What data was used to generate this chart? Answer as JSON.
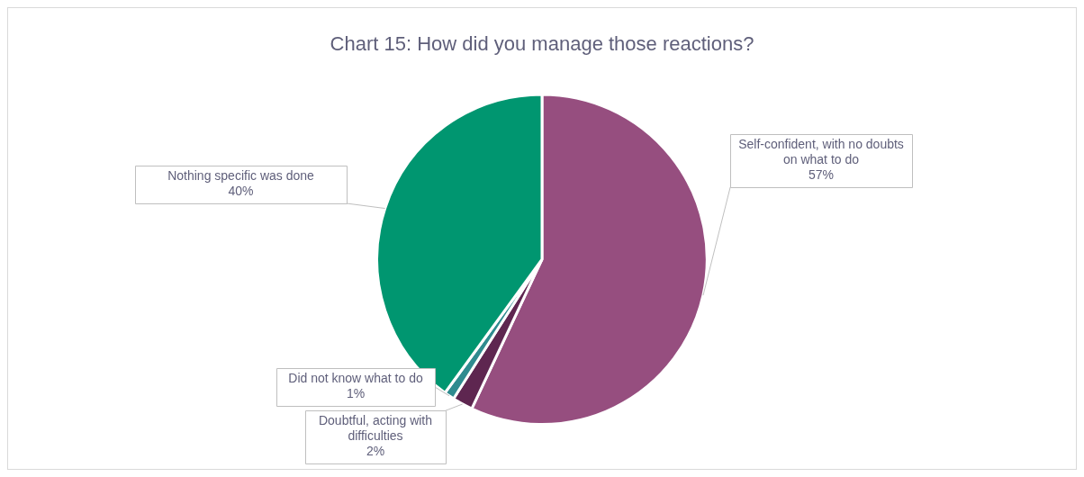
{
  "chart_data": {
    "type": "pie",
    "title": "Chart 15: How did you manage those reactions?",
    "categories": [
      "Self-confident, with no doubts on what to do",
      "Doubtful, acting with difficulties",
      "Did not know what to do",
      "Nothing specific was done"
    ],
    "values": [
      57,
      2,
      1,
      40
    ],
    "value_labels": [
      "57%",
      "2%",
      "1%",
      "40%"
    ],
    "colors": [
      "#964e7f",
      "#5e2650",
      "#2f8b8f",
      "#009670"
    ],
    "legend": false
  }
}
